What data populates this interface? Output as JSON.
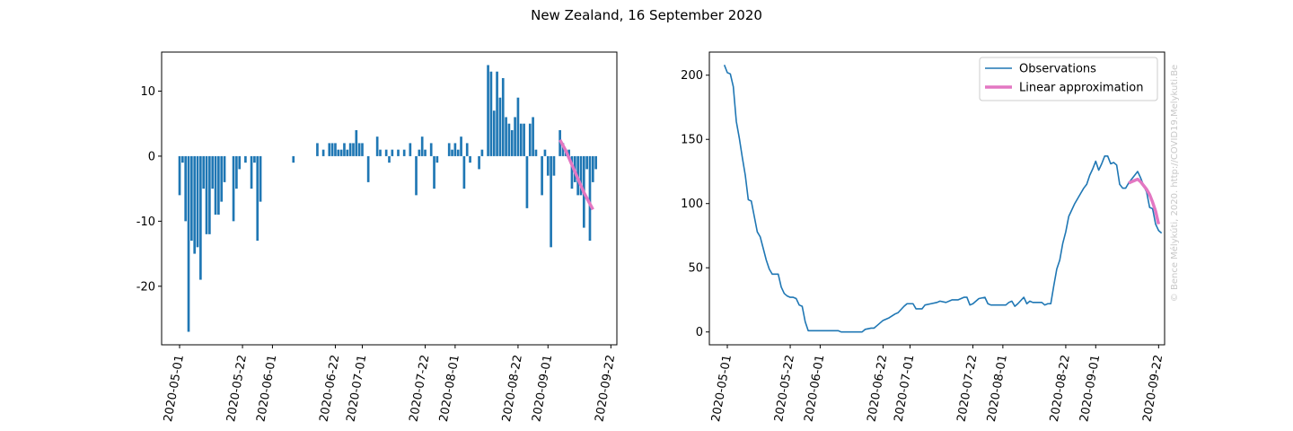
{
  "figure": {
    "title": "New Zealand, 16 September 2020",
    "watermark": "© Bence Mélykúti, 2020. http://COVID19.Melykuti.Be"
  },
  "colors": {
    "bars": "#1f77b4",
    "observations": "#1f77b4",
    "linear_approximation": "#e377c2"
  },
  "chart_data": [
    {
      "type": "bar",
      "x_axis": "date",
      "xlim": [
        "2020-04-25",
        "2020-09-24"
      ],
      "ylim": [
        -29,
        16
      ],
      "x_ticks": [
        "2020-05-01",
        "2020-05-22",
        "2020-06-01",
        "2020-06-22",
        "2020-07-01",
        "2020-07-22",
        "2020-08-01",
        "2020-08-22",
        "2020-09-01",
        "2020-09-22"
      ],
      "y_ticks": [
        10,
        0,
        -10,
        -20
      ],
      "grid": false,
      "bars": [
        [
          "2020-05-01",
          -6
        ],
        [
          "2020-05-02",
          -1
        ],
        [
          "2020-05-03",
          -10
        ],
        [
          "2020-05-04",
          -27
        ],
        [
          "2020-05-05",
          -13
        ],
        [
          "2020-05-06",
          -15
        ],
        [
          "2020-05-07",
          -14
        ],
        [
          "2020-05-08",
          -19
        ],
        [
          "2020-05-09",
          -5
        ],
        [
          "2020-05-10",
          -12
        ],
        [
          "2020-05-11",
          -12
        ],
        [
          "2020-05-12",
          -5
        ],
        [
          "2020-05-13",
          -9
        ],
        [
          "2020-05-14",
          -9
        ],
        [
          "2020-05-15",
          -7
        ],
        [
          "2020-05-16",
          -4
        ],
        [
          "2020-05-19",
          -10
        ],
        [
          "2020-05-20",
          -5
        ],
        [
          "2020-05-21",
          -2
        ],
        [
          "2020-05-23",
          -1
        ],
        [
          "2020-05-25",
          -5
        ],
        [
          "2020-05-26",
          -1
        ],
        [
          "2020-05-27",
          -13
        ],
        [
          "2020-05-28",
          -7
        ],
        [
          "2020-06-08",
          -1
        ],
        [
          "2020-06-16",
          2
        ],
        [
          "2020-06-18",
          1
        ],
        [
          "2020-06-20",
          2
        ],
        [
          "2020-06-21",
          2
        ],
        [
          "2020-06-22",
          2
        ],
        [
          "2020-06-23",
          1
        ],
        [
          "2020-06-24",
          1
        ],
        [
          "2020-06-25",
          2
        ],
        [
          "2020-06-26",
          1
        ],
        [
          "2020-06-27",
          2
        ],
        [
          "2020-06-28",
          2
        ],
        [
          "2020-06-29",
          4
        ],
        [
          "2020-06-30",
          2
        ],
        [
          "2020-07-01",
          2
        ],
        [
          "2020-07-03",
          -4
        ],
        [
          "2020-07-06",
          3
        ],
        [
          "2020-07-07",
          1
        ],
        [
          "2020-07-09",
          1
        ],
        [
          "2020-07-10",
          -1
        ],
        [
          "2020-07-11",
          1
        ],
        [
          "2020-07-13",
          1
        ],
        [
          "2020-07-15",
          1
        ],
        [
          "2020-07-17",
          2
        ],
        [
          "2020-07-19",
          -6
        ],
        [
          "2020-07-20",
          1
        ],
        [
          "2020-07-21",
          3
        ],
        [
          "2020-07-22",
          1
        ],
        [
          "2020-07-24",
          2
        ],
        [
          "2020-07-25",
          -5
        ],
        [
          "2020-07-26",
          -1
        ],
        [
          "2020-07-30",
          2
        ],
        [
          "2020-07-31",
          1
        ],
        [
          "2020-08-01",
          2
        ],
        [
          "2020-08-02",
          1
        ],
        [
          "2020-08-03",
          3
        ],
        [
          "2020-08-04",
          -5
        ],
        [
          "2020-08-05",
          2
        ],
        [
          "2020-08-06",
          -1
        ],
        [
          "2020-08-09",
          -2
        ],
        [
          "2020-08-10",
          1
        ],
        [
          "2020-08-12",
          14
        ],
        [
          "2020-08-13",
          13
        ],
        [
          "2020-08-14",
          7
        ],
        [
          "2020-08-15",
          13
        ],
        [
          "2020-08-16",
          9
        ],
        [
          "2020-08-17",
          12
        ],
        [
          "2020-08-18",
          6
        ],
        [
          "2020-08-19",
          5
        ],
        [
          "2020-08-20",
          4
        ],
        [
          "2020-08-21",
          6
        ],
        [
          "2020-08-22",
          9
        ],
        [
          "2020-08-23",
          5
        ],
        [
          "2020-08-24",
          5
        ],
        [
          "2020-08-25",
          -8
        ],
        [
          "2020-08-26",
          5
        ],
        [
          "2020-08-27",
          6
        ],
        [
          "2020-08-28",
          1
        ],
        [
          "2020-08-30",
          -6
        ],
        [
          "2020-08-31",
          1
        ],
        [
          "2020-09-01",
          -3
        ],
        [
          "2020-09-02",
          -14
        ],
        [
          "2020-09-03",
          -3
        ],
        [
          "2020-09-05",
          4
        ],
        [
          "2020-09-06",
          2
        ],
        [
          "2020-09-07",
          1
        ],
        [
          "2020-09-08",
          1
        ],
        [
          "2020-09-09",
          -5
        ],
        [
          "2020-09-10",
          -4
        ],
        [
          "2020-09-11",
          -6
        ],
        [
          "2020-09-12",
          -6
        ],
        [
          "2020-09-13",
          -11
        ],
        [
          "2020-09-14",
          -2
        ],
        [
          "2020-09-15",
          -13
        ],
        [
          "2020-09-16",
          -4
        ],
        [
          "2020-09-17",
          -2
        ]
      ],
      "line": {
        "points": [
          [
            "2020-09-05",
            2.5
          ],
          [
            "2020-09-07",
            0.8
          ],
          [
            "2020-09-10",
            -2.4
          ],
          [
            "2020-09-13",
            -5.6
          ],
          [
            "2020-09-16",
            -8.2
          ]
        ]
      }
    },
    {
      "type": "line",
      "x_axis": "date",
      "xlim": [
        "2020-04-25",
        "2020-09-24"
      ],
      "ylim": [
        -10,
        218
      ],
      "x_ticks": [
        "2020-05-01",
        "2020-05-22",
        "2020-06-01",
        "2020-06-22",
        "2020-07-01",
        "2020-07-22",
        "2020-08-01",
        "2020-08-22",
        "2020-09-01",
        "2020-09-22"
      ],
      "y_ticks": [
        200,
        150,
        100,
        50,
        0
      ],
      "grid": false,
      "legend": {
        "placement": "upper right",
        "entries": [
          "Observations",
          "Linear approximation"
        ]
      },
      "series": [
        {
          "name": "Observations",
          "points": [
            [
              "2020-04-30",
              208
            ],
            [
              "2020-05-01",
              202
            ],
            [
              "2020-05-02",
              201
            ],
            [
              "2020-05-03",
              191
            ],
            [
              "2020-05-04",
              164
            ],
            [
              "2020-05-05",
              151
            ],
            [
              "2020-05-06",
              136
            ],
            [
              "2020-05-07",
              122
            ],
            [
              "2020-05-08",
              103
            ],
            [
              "2020-05-09",
              102
            ],
            [
              "2020-05-10",
              90
            ],
            [
              "2020-05-11",
              78
            ],
            [
              "2020-05-12",
              74
            ],
            [
              "2020-05-13",
              65
            ],
            [
              "2020-05-14",
              56
            ],
            [
              "2020-05-15",
              49
            ],
            [
              "2020-05-16",
              45
            ],
            [
              "2020-05-17",
              45
            ],
            [
              "2020-05-18",
              45
            ],
            [
              "2020-05-19",
              35
            ],
            [
              "2020-05-20",
              30
            ],
            [
              "2020-05-21",
              28
            ],
            [
              "2020-05-22",
              27
            ],
            [
              "2020-05-23",
              27
            ],
            [
              "2020-05-24",
              26
            ],
            [
              "2020-05-25",
              21
            ],
            [
              "2020-05-26",
              20
            ],
            [
              "2020-05-27",
              8
            ],
            [
              "2020-05-28",
              1
            ],
            [
              "2020-06-01",
              1
            ],
            [
              "2020-06-05",
              1
            ],
            [
              "2020-06-07",
              1
            ],
            [
              "2020-06-08",
              0
            ],
            [
              "2020-06-15",
              0
            ],
            [
              "2020-06-16",
              2
            ],
            [
              "2020-06-18",
              3
            ],
            [
              "2020-06-19",
              3
            ],
            [
              "2020-06-20",
              5
            ],
            [
              "2020-06-22",
              9
            ],
            [
              "2020-06-24",
              11
            ],
            [
              "2020-06-26",
              14
            ],
            [
              "2020-06-27",
              15
            ],
            [
              "2020-06-29",
              20
            ],
            [
              "2020-06-30",
              22
            ],
            [
              "2020-07-02",
              22
            ],
            [
              "2020-07-03",
              18
            ],
            [
              "2020-07-05",
              18
            ],
            [
              "2020-07-06",
              21
            ],
            [
              "2020-07-08",
              22
            ],
            [
              "2020-07-10",
              23
            ],
            [
              "2020-07-11",
              24
            ],
            [
              "2020-07-13",
              23
            ],
            [
              "2020-07-15",
              25
            ],
            [
              "2020-07-17",
              25
            ],
            [
              "2020-07-19",
              27
            ],
            [
              "2020-07-20",
              27
            ],
            [
              "2020-07-21",
              21
            ],
            [
              "2020-07-22",
              22
            ],
            [
              "2020-07-24",
              26
            ],
            [
              "2020-07-26",
              27
            ],
            [
              "2020-07-27",
              22
            ],
            [
              "2020-07-28",
              21
            ],
            [
              "2020-07-30",
              21
            ],
            [
              "2020-08-01",
              21
            ],
            [
              "2020-08-02",
              21
            ],
            [
              "2020-08-03",
              23
            ],
            [
              "2020-08-04",
              24
            ],
            [
              "2020-08-05",
              20
            ],
            [
              "2020-08-06",
              22
            ],
            [
              "2020-08-08",
              27
            ],
            [
              "2020-08-09",
              22
            ],
            [
              "2020-08-10",
              24
            ],
            [
              "2020-08-11",
              23
            ],
            [
              "2020-08-13",
              23
            ],
            [
              "2020-08-14",
              23
            ],
            [
              "2020-08-15",
              21
            ],
            [
              "2020-08-16",
              22
            ],
            [
              "2020-08-17",
              22
            ],
            [
              "2020-08-18",
              36
            ],
            [
              "2020-08-19",
              49
            ],
            [
              "2020-08-20",
              56
            ],
            [
              "2020-08-21",
              69
            ],
            [
              "2020-08-22",
              78
            ],
            [
              "2020-08-23",
              90
            ],
            [
              "2020-08-24",
              95
            ],
            [
              "2020-08-25",
              100
            ],
            [
              "2020-08-26",
              104
            ],
            [
              "2020-08-27",
              108
            ],
            [
              "2020-08-28",
              112
            ],
            [
              "2020-08-29",
              115
            ],
            [
              "2020-08-30",
              122
            ],
            [
              "2020-08-31",
              127
            ],
            [
              "2020-09-01",
              133
            ],
            [
              "2020-09-02",
              126
            ],
            [
              "2020-09-03",
              131
            ],
            [
              "2020-09-04",
              137
            ],
            [
              "2020-09-05",
              137
            ],
            [
              "2020-09-06",
              131
            ],
            [
              "2020-09-07",
              132
            ],
            [
              "2020-09-08",
              130
            ],
            [
              "2020-09-09",
              115
            ],
            [
              "2020-09-10",
              112
            ],
            [
              "2020-09-11",
              112
            ],
            [
              "2020-09-12",
              116
            ],
            [
              "2020-09-13",
              119
            ],
            [
              "2020-09-14",
              122
            ],
            [
              "2020-09-15",
              125
            ],
            [
              "2020-09-16",
              120
            ],
            [
              "2020-09-17",
              114
            ],
            [
              "2020-09-18",
              109
            ],
            [
              "2020-09-19",
              97
            ],
            [
              "2020-09-20",
              96
            ],
            [
              "2020-09-21",
              84
            ],
            [
              "2020-09-22",
              79
            ],
            [
              "2020-09-23",
              77
            ]
          ]
        },
        {
          "name": "Linear approximation",
          "points": [
            [
              "2020-09-12",
              116
            ],
            [
              "2020-09-13",
              117
            ],
            [
              "2020-09-14",
              118
            ],
            [
              "2020-09-15",
              119
            ],
            [
              "2020-09-16",
              117
            ],
            [
              "2020-09-17",
              114
            ],
            [
              "2020-09-18",
              111
            ],
            [
              "2020-09-19",
              107
            ],
            [
              "2020-09-20",
              101
            ],
            [
              "2020-09-21",
              94
            ],
            [
              "2020-09-22",
              84
            ]
          ]
        }
      ]
    }
  ]
}
